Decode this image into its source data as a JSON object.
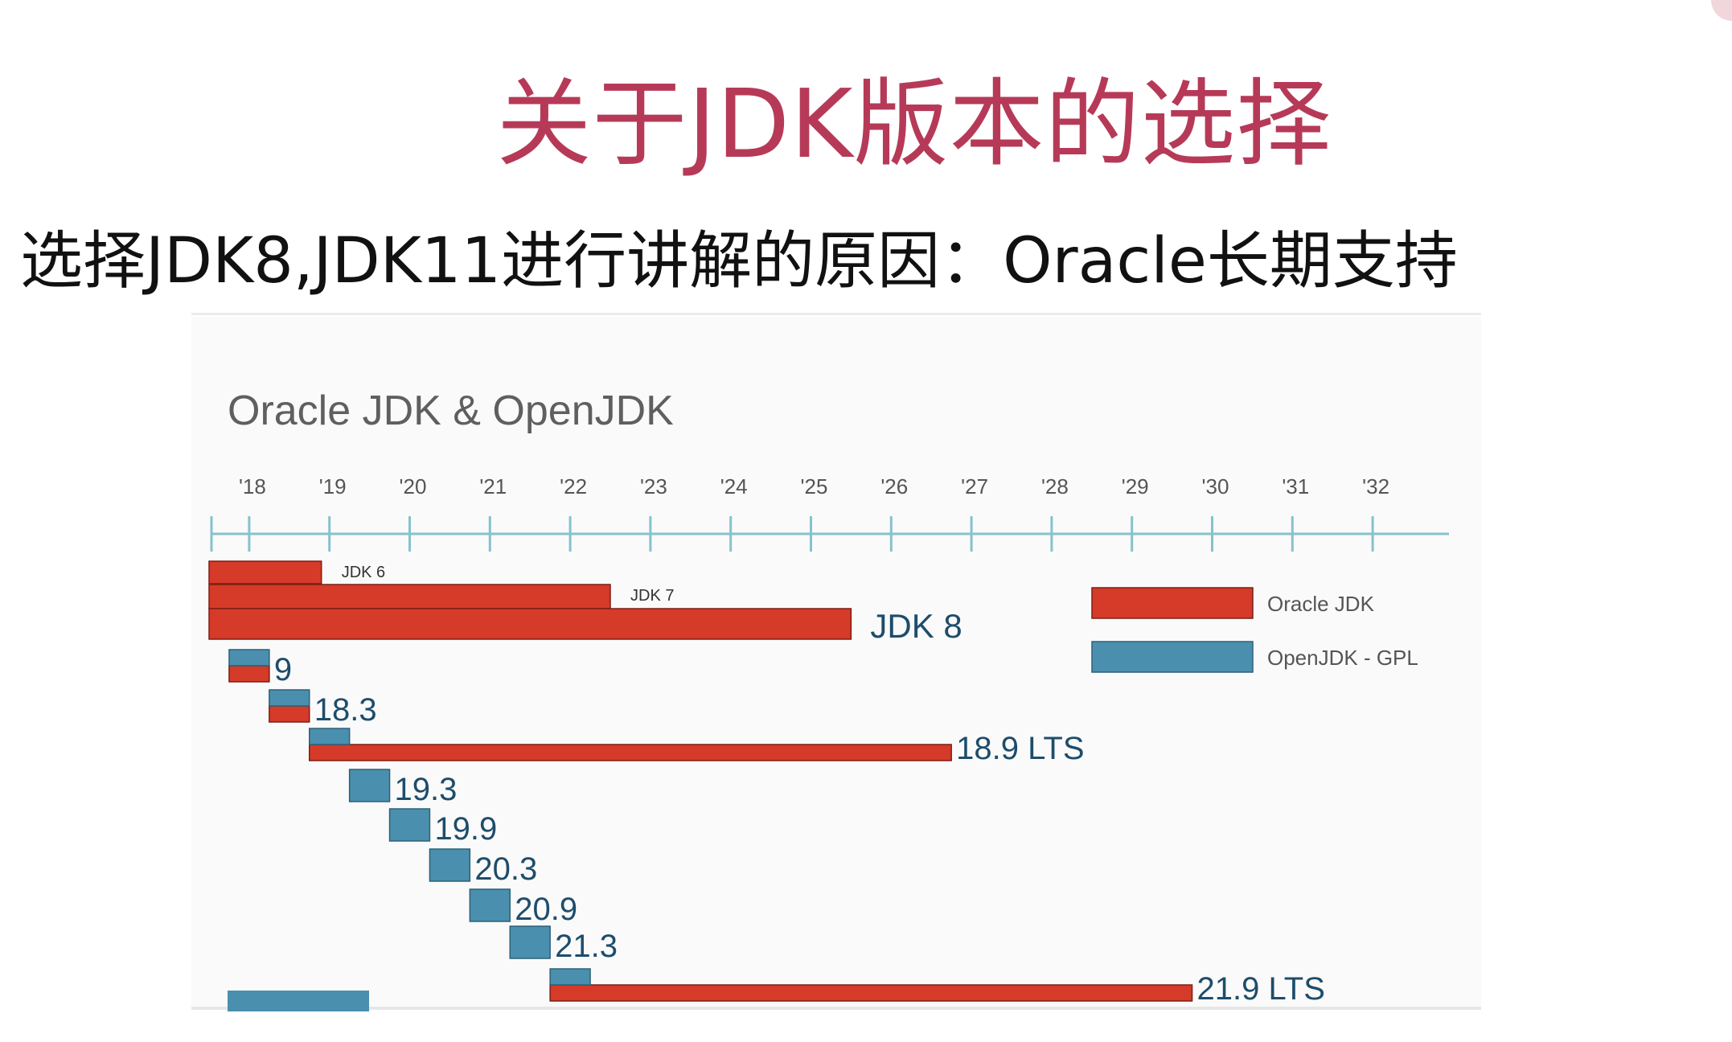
{
  "title": "关于JDK版本的选择",
  "subtitle": "选择JDK8,JDK11进行讲解的原因：Oracle长期支持",
  "colors": {
    "title": "#b63a58",
    "oracle": "#d63a28",
    "openjdk": "#4a8fae",
    "axis": "#86c2cc",
    "chart_title": "#5f5f5f",
    "version_label": "#1e4d6b"
  },
  "chart_data": {
    "type": "bar",
    "title": "Oracle JDK & OpenJDK",
    "x_ticks": [
      "'18",
      "'19",
      "'20",
      "'21",
      "'22",
      "'23",
      "'24",
      "'25",
      "'26",
      "'27",
      "'28",
      "'29",
      "'30",
      "'31",
      "'32"
    ],
    "xlim": [
      2017.5,
      2033.0
    ],
    "legend": {
      "placement": "right",
      "entries": [
        {
          "name": "Oracle JDK",
          "color": "#d63a28"
        },
        {
          "name": "OpenJDK - GPL",
          "color": "#4a8fae"
        }
      ]
    },
    "releases": [
      {
        "label": "JDK 6",
        "label_style": "small",
        "oracle_start": 2017.5,
        "oracle_end": 2018.9
      },
      {
        "label": "JDK 7",
        "label_style": "small",
        "oracle_start": 2017.5,
        "oracle_end": 2022.5
      },
      {
        "label": "JDK 8",
        "label_style": "large",
        "oracle_start": 2017.5,
        "oracle_end": 2025.5
      },
      {
        "label": "9",
        "openjdk_start": 2017.75,
        "openjdk_end": 2018.25,
        "oracle_start": 2017.75,
        "oracle_end": 2018.25
      },
      {
        "label": "18.3",
        "openjdk_start": 2018.25,
        "openjdk_end": 2018.75,
        "oracle_start": 2018.25,
        "oracle_end": 2018.75
      },
      {
        "label": "18.9 LTS",
        "openjdk_start": 2018.75,
        "openjdk_end": 2019.25,
        "oracle_start": 2018.75,
        "oracle_end": 2026.75
      },
      {
        "label": "19.3",
        "openjdk_start": 2019.25,
        "openjdk_end": 2019.75
      },
      {
        "label": "19.9",
        "openjdk_start": 2019.75,
        "openjdk_end": 2020.25
      },
      {
        "label": "20.3",
        "openjdk_start": 2020.25,
        "openjdk_end": 2020.75
      },
      {
        "label": "20.9",
        "openjdk_start": 2020.75,
        "openjdk_end": 2021.25
      },
      {
        "label": "21.3",
        "openjdk_start": 2021.25,
        "openjdk_end": 2021.75
      },
      {
        "label": "21.9 LTS",
        "openjdk_start": 2021.75,
        "openjdk_end": 2022.25,
        "oracle_start": 2021.75,
        "oracle_end": 2029.75
      }
    ]
  }
}
